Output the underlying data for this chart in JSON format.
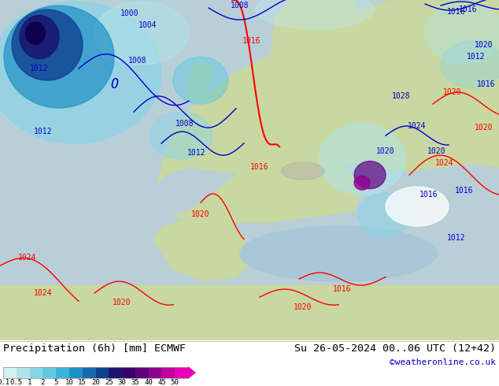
{
  "title_left": "Precipitation (6h) [mm] ECMWF",
  "title_right": "Su 26-05-2024 00..06 UTC (12+42)",
  "credit": "©weatheronline.co.uk",
  "colorbar_values": [
    "0.1",
    "0.5",
    "1",
    "2",
    "5",
    "10",
    "15",
    "20",
    "25",
    "30",
    "35",
    "40",
    "45",
    "50"
  ],
  "colorbar_colors": [
    "#d4f0f0",
    "#b0e4e8",
    "#88d4e8",
    "#60c8e0",
    "#38b4d8",
    "#2090c8",
    "#1868b0",
    "#104090",
    "#181870",
    "#380068",
    "#600080",
    "#900090",
    "#c000a0",
    "#e800b8"
  ],
  "land_color": "#c8d8a0",
  "sea_color": "#b8d8c8",
  "fig_width": 6.34,
  "fig_height": 4.9,
  "dpi": 100
}
